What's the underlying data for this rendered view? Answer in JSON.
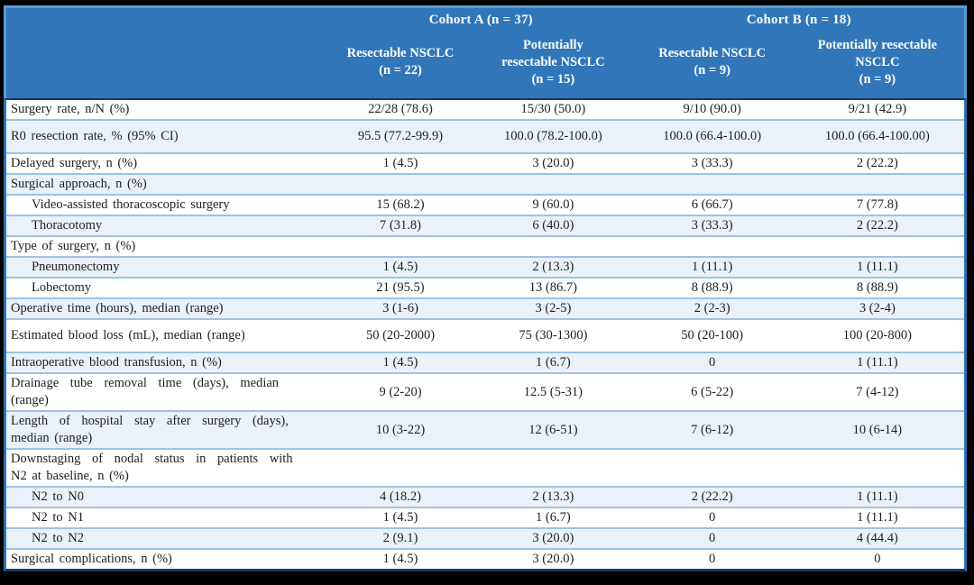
{
  "table": {
    "header": {
      "cohorts": [
        {
          "label": "Cohort A (n = 37)"
        },
        {
          "label": "Cohort B (n = 18)"
        }
      ],
      "columns": [
        "Resectable NSCLC\n(n = 22)",
        "Potentially\nresectable NSCLC\n(n = 15)",
        "Resectable NSCLC\n(n = 9)",
        "Potentially resectable\nNSCLC\n(n = 9)"
      ]
    },
    "rows": [
      {
        "label": "Surgery rate, n/N (%)",
        "values": [
          "22/28 (78.6)",
          "15/30 (50.0)",
          "9/10 (90.0)",
          "9/21 (42.9)"
        ]
      },
      {
        "label": "R0 resection rate, % (95% CI)",
        "values": [
          "95.5 (77.2-99.9)",
          "100.0 (78.2-100.0)",
          "100.0 (66.4-100.0)",
          "100.0 (66.4-100.00)"
        ],
        "tall": true
      },
      {
        "label": "Delayed surgery, n (%)",
        "values": [
          "1 (4.5)",
          "3 (20.0)",
          "3 (33.3)",
          "2 (22.2)"
        ]
      },
      {
        "label": "Surgical approach, n (%)",
        "values": [
          "",
          "",
          "",
          ""
        ]
      },
      {
        "label": "Video-assisted thoracoscopic surgery",
        "values": [
          "15 (68.2)",
          "9 (60.0)",
          "6 (66.7)",
          "7 (77.8)"
        ],
        "indent": true
      },
      {
        "label": "Thoracotomy",
        "values": [
          "7 (31.8)",
          "6 (40.0)",
          "3 (33.3)",
          "2 (22.2)"
        ],
        "indent": true
      },
      {
        "label": "Type of surgery, n (%)",
        "values": [
          "",
          "",
          "",
          ""
        ]
      },
      {
        "label": "Pneumonectomy",
        "values": [
          "1 (4.5)",
          "2 (13.3)",
          "1 (11.1)",
          "1 (11.1)"
        ],
        "indent": true
      },
      {
        "label": "Lobectomy",
        "values": [
          "21 (95.5)",
          "13 (86.7)",
          "8 (88.9)",
          "8 (88.9)"
        ],
        "indent": true
      },
      {
        "label": "Operative time (hours), median (range)",
        "values": [
          "3 (1-6)",
          "3 (2-5)",
          "2 (2-3)",
          "3 (2-4)"
        ]
      },
      {
        "label": "Estimated blood loss (mL), median (range)",
        "values": [
          "50 (20-2000)",
          "75 (30-1300)",
          "50 (20-100)",
          "100 (20-800)"
        ],
        "tall": true
      },
      {
        "label": "Intraoperative blood transfusion, n (%)",
        "values": [
          "1 (4.5)",
          "1 (6.7)",
          "0",
          "1 (11.1)"
        ]
      },
      {
        "label": "Drainage tube removal time (days), median\n(range)",
        "values": [
          "9 (2-20)",
          "12.5 (5-31)",
          "6 (5-22)",
          "7 (4-12)"
        ],
        "spread": true
      },
      {
        "label": "Length of hospital stay after surgery (days),\nmedian (range)",
        "values": [
          "10 (3-22)",
          "12 (6-51)",
          "7 (6-12)",
          "10 (6-14)"
        ],
        "spread": true
      },
      {
        "label": "Downstaging of nodal status in patients with\nN2 at baseline, n (%)",
        "values": [
          "",
          "",
          "",
          ""
        ],
        "spread": true
      },
      {
        "label": "N2 to N0",
        "values": [
          "4 (18.2)",
          "2 (13.3)",
          "2 (22.2)",
          "1 (11.1)"
        ],
        "indent": true
      },
      {
        "label": "N2 to N1",
        "values": [
          "1 (4.5)",
          "1 (6.7)",
          "0",
          "1 (11.1)"
        ],
        "indent": true
      },
      {
        "label": "N2 to N2",
        "values": [
          "2 (9.1)",
          "3 (20.0)",
          "0",
          "4 (44.4)"
        ],
        "indent": true
      },
      {
        "label": "Surgical complications, n (%)",
        "values": [
          "1 (4.5)",
          "3 (20.0)",
          "0",
          "0"
        ]
      }
    ],
    "colors": {
      "frame": "#000000",
      "header_bg": "#3076B9",
      "header_border": "#5B9BD5",
      "header_text": "#FFFFFF",
      "row_shade": "#EAF1F9",
      "separator": "#9CC3E5",
      "side_border": "#2E75B6",
      "dark_rule": "#17375E",
      "text": "#1F1F1F"
    }
  }
}
